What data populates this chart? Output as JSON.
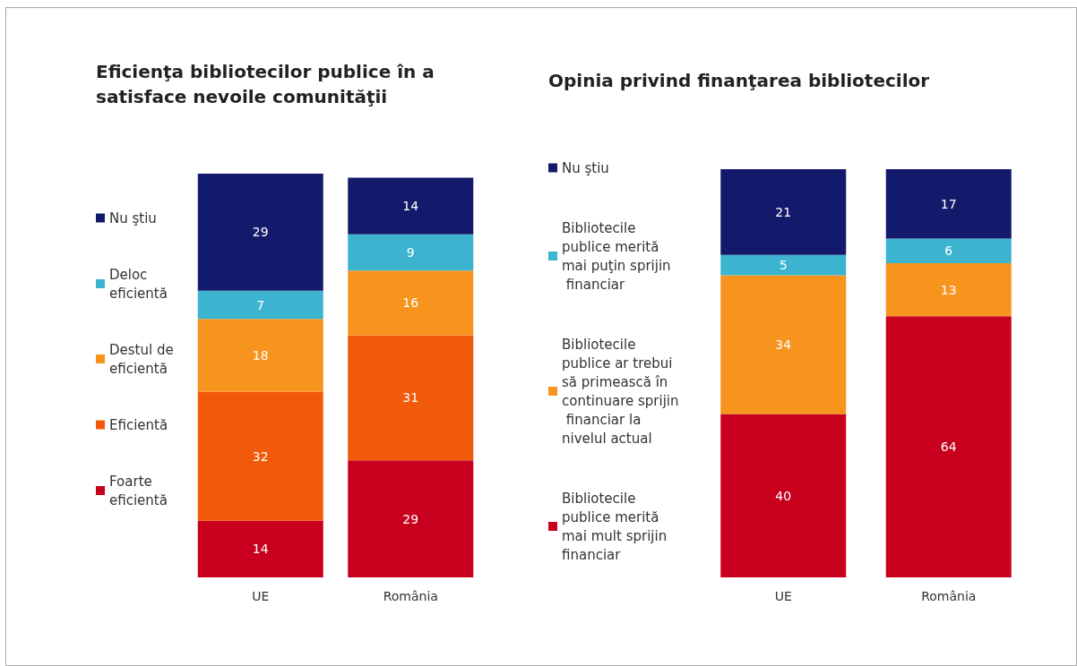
{
  "chart_data": [
    {
      "type": "bar",
      "title": "Eficienţa bibliotecilor publice în a satisface nevoile comunităţii",
      "categories": [
        "UE",
        "România"
      ],
      "stacked": true,
      "data_labels": true,
      "legend": "left",
      "tick_labels": "x",
      "grid": false,
      "series": [
        {
          "name": "Foarte eficientă",
          "color": "#c8001e",
          "values": [
            14,
            29
          ]
        },
        {
          "name": "Eficientă",
          "color": "#f05a0a",
          "values": [
            32,
            31
          ]
        },
        {
          "name": "Destul de eficientă",
          "color": "#f7941d",
          "values": [
            18,
            16
          ]
        },
        {
          "name": "Deloc eficientă",
          "color": "#3cb4d0",
          "values": [
            7,
            9
          ]
        },
        {
          "name": "Nu ştiu",
          "color": "#141a6b",
          "values": [
            29,
            14
          ]
        }
      ]
    },
    {
      "type": "bar",
      "title": "Opinia privind finanţarea bibliotecilor",
      "categories": [
        "UE",
        "România"
      ],
      "stacked": true,
      "data_labels": true,
      "legend": "left",
      "tick_labels": "x",
      "grid": false,
      "series": [
        {
          "name": "Bibliotecile publice merită mai mult sprijin financiar",
          "color": "#c8001e",
          "values": [
            40,
            64
          ]
        },
        {
          "name": "Bibliotecile publice ar trebui să primească în continuare sprijin financiar la nivelul actual",
          "color": "#f7941d",
          "values": [
            34,
            13
          ]
        },
        {
          "name": "Bibliotecile publice merită mai puţin sprijin financiar",
          "color": "#3cb4d0",
          "values": [
            5,
            6
          ]
        },
        {
          "name": "Nu ştiu",
          "color": "#141a6b",
          "values": [
            21,
            17
          ]
        }
      ]
    }
  ]
}
